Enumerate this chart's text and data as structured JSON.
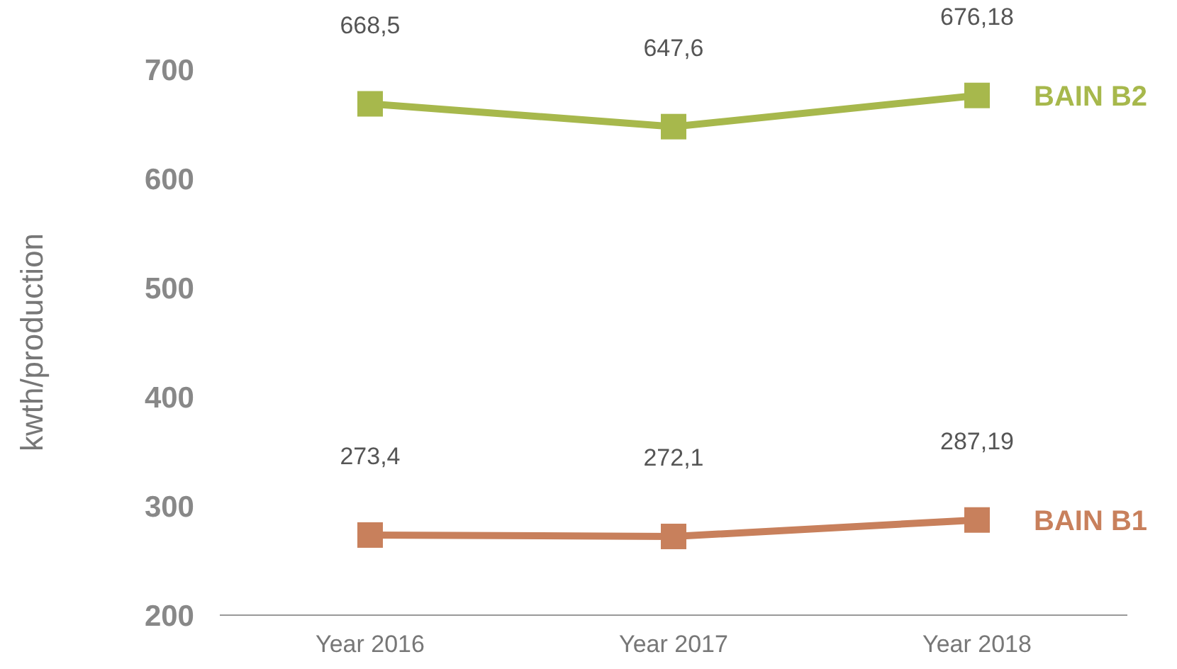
{
  "chart_data": {
    "type": "line",
    "ylabel": "kwth/production",
    "categories": [
      "Year 2016",
      "Year 2017",
      "Year 2018"
    ],
    "series": [
      {
        "name": "BAIN B2",
        "color": "#a7b84c",
        "values": [
          668.5,
          647.6,
          676.18
        ],
        "value_labels": [
          "668,5",
          "647,6",
          "676,18"
        ]
      },
      {
        "name": "BAIN B1",
        "color": "#c8805c",
        "values": [
          273.4,
          272.1,
          287.19
        ],
        "value_labels": [
          "273,4",
          "272,1",
          "287,19"
        ]
      }
    ],
    "ylim": [
      200,
      700
    ],
    "yticks": [
      200,
      300,
      400,
      500,
      600,
      700
    ],
    "grid": false,
    "legend": false,
    "marker": "square",
    "line_style": "solid"
  }
}
